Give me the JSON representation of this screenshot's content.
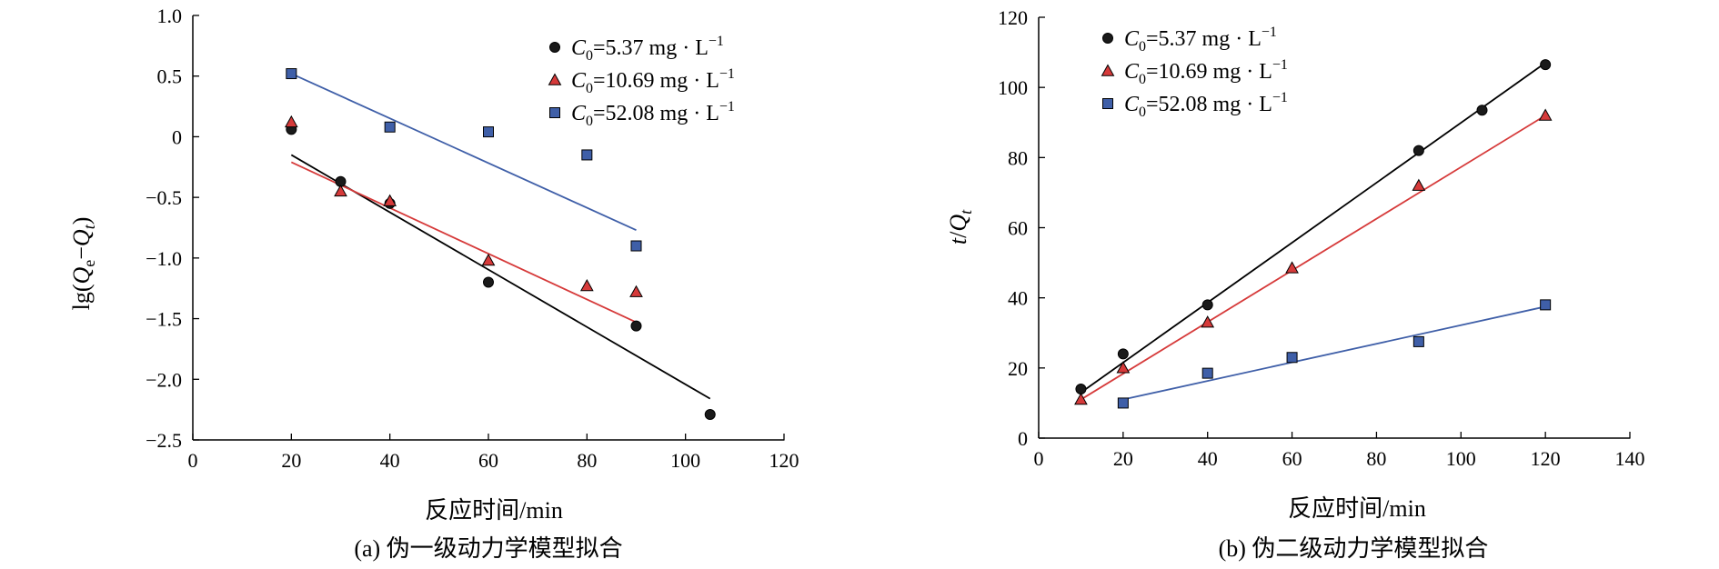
{
  "colors": {
    "series1": "#1a1a1a",
    "series2": "#d63a3a",
    "series3": "#3f5fa8",
    "fit1": "#000000",
    "fit2": "#d63a3a",
    "fit3": "#3f5fa8"
  },
  "chart_data": [
    {
      "type": "scatter",
      "caption": "(a) 伪一级动力学模型拟合",
      "xlabel": "反应时间/min",
      "ylabel": "lg(Qe−Qt)",
      "xlim": [
        0,
        120
      ],
      "ylim": [
        -2.5,
        1.0
      ],
      "xticks": [
        0,
        20,
        40,
        60,
        80,
        100,
        120
      ],
      "yticks": [
        -2.5,
        -2.0,
        -1.5,
        -1.0,
        -0.5,
        0,
        0.5,
        1.0
      ],
      "xtick_labels": [
        "0",
        "20",
        "40",
        "60",
        "80",
        "100",
        "120"
      ],
      "ytick_labels": [
        "−2.5",
        "−2.0",
        "−1.5",
        "−1.0",
        "−0.5",
        "0",
        "0.5",
        "1.0"
      ],
      "legend_position": "top-right",
      "series": [
        {
          "name": "C0=5.37 mg · L−1",
          "name_main": "C",
          "name_sub": "0",
          "name_rest": "=5.37 mg · L",
          "name_sup": "−1",
          "marker": "circle",
          "x": [
            20,
            30,
            40,
            60,
            90,
            105
          ],
          "y": [
            0.06,
            -0.37,
            -0.55,
            -1.2,
            -1.56,
            -2.29
          ],
          "fit": {
            "x": [
              20,
              105
            ],
            "y": [
              -0.15,
              -2.16
            ]
          }
        },
        {
          "name": "C0=10.69 mg · L−1",
          "name_main": "C",
          "name_sub": "0",
          "name_rest": "=10.69 mg · L",
          "name_sup": "−1",
          "marker": "triangle",
          "x": [
            20,
            30,
            40,
            60,
            80,
            90
          ],
          "y": [
            0.12,
            -0.45,
            -0.53,
            -1.02,
            -1.23,
            -1.28
          ],
          "fit": {
            "x": [
              20,
              90
            ],
            "y": [
              -0.21,
              -1.53
            ]
          }
        },
        {
          "name": "C0=52.08 mg · L−1",
          "name_main": "C",
          "name_sub": "0",
          "name_rest": "=52.08 mg · L",
          "name_sup": "−1",
          "marker": "square",
          "x": [
            20,
            40,
            60,
            80,
            90
          ],
          "y": [
            0.52,
            0.08,
            0.04,
            -0.15,
            -0.9
          ],
          "fit": {
            "x": [
              20,
              90
            ],
            "y": [
              0.52,
              -0.77
            ]
          }
        }
      ]
    },
    {
      "type": "scatter",
      "caption": "(b) 伪二级动力学模型拟合",
      "xlabel": "反应时间/min",
      "ylabel": "t/Qt",
      "xlim": [
        0,
        140
      ],
      "ylim": [
        0,
        120
      ],
      "xticks": [
        0,
        20,
        40,
        60,
        80,
        100,
        120,
        140
      ],
      "yticks": [
        0,
        20,
        40,
        60,
        80,
        100,
        120
      ],
      "xtick_labels": [
        "0",
        "20",
        "40",
        "60",
        "80",
        "100",
        "120",
        "140"
      ],
      "ytick_labels": [
        "0",
        "20",
        "40",
        "60",
        "80",
        "100",
        "120"
      ],
      "legend_position": "top-left",
      "series": [
        {
          "name": "C0=5.37 mg · L−1",
          "name_main": "C",
          "name_sub": "0",
          "name_rest": "=5.37 mg · L",
          "name_sup": "−1",
          "marker": "circle",
          "x": [
            10,
            20,
            40,
            90,
            105,
            120
          ],
          "y": [
            14,
            24,
            38,
            82,
            93.5,
            106.5
          ],
          "fit": {
            "x": [
              10,
              120
            ],
            "y": [
              13,
              107
            ]
          }
        },
        {
          "name": "C0=10.69 mg · L−1",
          "name_main": "C",
          "name_sub": "0",
          "name_rest": "=10.69 mg · L",
          "name_sup": "−1",
          "marker": "triangle",
          "x": [
            10,
            20,
            40,
            60,
            90,
            120
          ],
          "y": [
            11,
            20,
            33,
            48.5,
            72,
            92
          ],
          "fit": {
            "x": [
              10,
              120
            ],
            "y": [
              11,
              92
            ]
          }
        },
        {
          "name": "C0=52.08 mg · L−1",
          "name_main": "C",
          "name_sub": "0",
          "name_rest": "=52.08 mg · L",
          "name_sup": "−1",
          "marker": "square",
          "x": [
            20,
            40,
            60,
            90,
            120
          ],
          "y": [
            10,
            18.5,
            23,
            27.5,
            38
          ],
          "fit": {
            "x": [
              20,
              120
            ],
            "y": [
              11,
              37.5
            ]
          }
        }
      ]
    }
  ]
}
